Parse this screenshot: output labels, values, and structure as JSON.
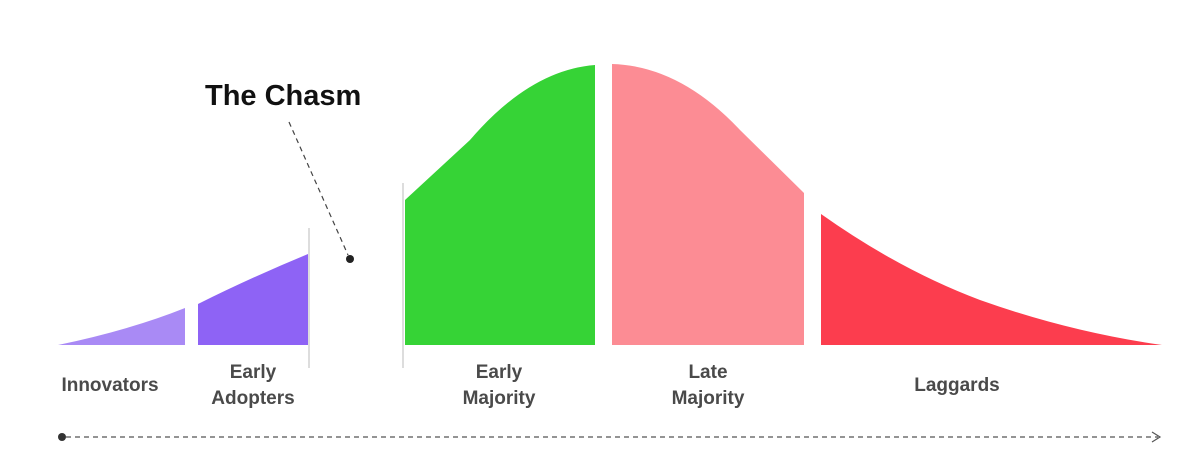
{
  "title": "The Chasm",
  "segments": [
    {
      "label": "Innovators"
    },
    {
      "label": "Early Adopters"
    },
    {
      "label": "Early Majority"
    },
    {
      "label": "Late Majority"
    },
    {
      "label": "Laggards"
    }
  ]
}
